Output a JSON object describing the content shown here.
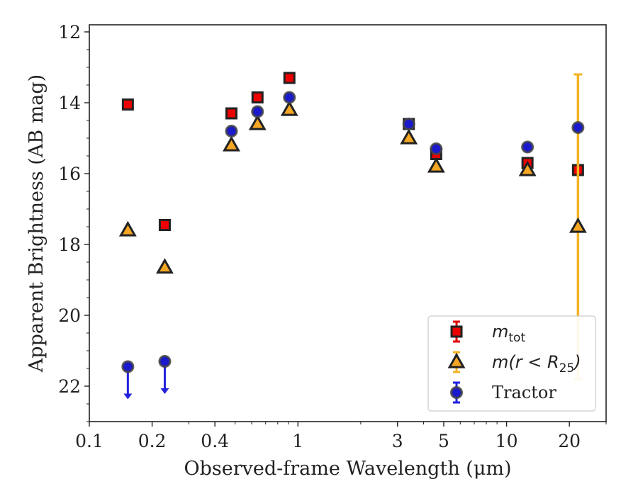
{
  "chart_data": {
    "type": "scatter",
    "title": "",
    "xlabel": "Observed-frame Wavelength (μm)",
    "ylabel": "Apparent Brightness (AB mag)",
    "x_scale": "log",
    "xlim": [
      0.1,
      30
    ],
    "ylim": [
      23,
      11.8
    ],
    "y_inverted": true,
    "grid": false,
    "legend_position": "bottom-right",
    "x_ticks": [
      0.1,
      0.2,
      0.4,
      1,
      3,
      5,
      10,
      20
    ],
    "x_tick_labels": [
      "0.1",
      "0.2",
      "0.4",
      "1",
      "3",
      "5",
      "10",
      "20"
    ],
    "y_ticks": [
      12,
      14,
      16,
      18,
      20,
      22
    ],
    "y_tick_labels": [
      "12",
      "14",
      "16",
      "18",
      "20",
      "22"
    ],
    "series": [
      {
        "name": "m_tot",
        "legend_main": "m",
        "legend_sub": "tot",
        "marker": "square",
        "color": "#ee0000",
        "edge": "#222222",
        "error_color": "#e00000",
        "points": [
          {
            "x": 0.153,
            "y": 14.05
          },
          {
            "x": 0.23,
            "y": 17.45
          },
          {
            "x": 0.48,
            "y": 14.3
          },
          {
            "x": 0.64,
            "y": 13.85
          },
          {
            "x": 0.91,
            "y": 13.3
          },
          {
            "x": 3.4,
            "y": 14.6
          },
          {
            "x": 4.6,
            "y": 15.45
          },
          {
            "x": 12.6,
            "y": 15.7
          },
          {
            "x": 22.0,
            "y": 15.9
          }
        ]
      },
      {
        "name": "m(r < R_25)",
        "legend_main": "m(r < R",
        "legend_sub": "25",
        "legend_close": ")",
        "marker": "triangle",
        "color": "#f5a623",
        "edge": "#222222",
        "error_color": "#f5b325",
        "points": [
          {
            "x": 0.153,
            "y": 17.6
          },
          {
            "x": 0.23,
            "y": 18.65
          },
          {
            "x": 0.48,
            "y": 15.2
          },
          {
            "x": 0.64,
            "y": 14.6
          },
          {
            "x": 0.91,
            "y": 14.2
          },
          {
            "x": 3.4,
            "y": 15.0
          },
          {
            "x": 4.6,
            "y": 15.8
          },
          {
            "x": 12.6,
            "y": 15.9
          },
          {
            "x": 22.0,
            "y": 17.5,
            "err_low": 13.2,
            "err_high": 21.8
          }
        ]
      },
      {
        "name": "Tractor",
        "marker": "circle",
        "color": "#1a1acc",
        "edge": "#444444",
        "error_color": "#2222dd",
        "points": [
          {
            "x": 0.153,
            "y": 21.45,
            "upper_limit": true
          },
          {
            "x": 0.23,
            "y": 21.3,
            "upper_limit": true
          },
          {
            "x": 0.48,
            "y": 14.8
          },
          {
            "x": 0.64,
            "y": 14.25
          },
          {
            "x": 0.91,
            "y": 13.85
          },
          {
            "x": 3.4,
            "y": 14.6
          },
          {
            "x": 4.6,
            "y": 15.3
          },
          {
            "x": 12.6,
            "y": 15.25
          },
          {
            "x": 22.0,
            "y": 14.7
          }
        ]
      }
    ]
  }
}
